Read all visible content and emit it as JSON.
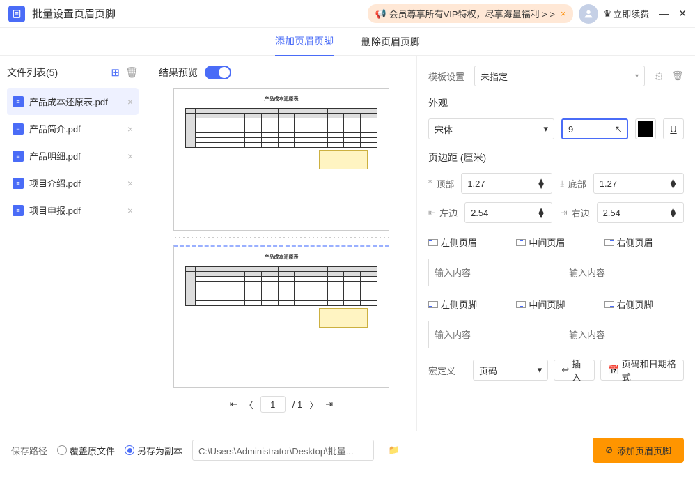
{
  "titlebar": {
    "title": "批量设置页眉页脚",
    "vip_text": "会员尊享所有VIP特权，尽享海量福利 > >",
    "vip_action": "立即续费"
  },
  "tabs": {
    "add": "添加页眉页脚",
    "remove": "删除页眉页脚"
  },
  "sidebar": {
    "title": "文件列表(5)",
    "files": [
      {
        "name": "产品成本还原表.pdf",
        "selected": true
      },
      {
        "name": "产品简介.pdf",
        "selected": false
      },
      {
        "name": "产品明细.pdf",
        "selected": false
      },
      {
        "name": "项目介绍.pdf",
        "selected": false
      },
      {
        "name": "项目申报.pdf",
        "selected": false
      }
    ]
  },
  "preview": {
    "title": "结果预览",
    "page_current": "1",
    "page_total": "/ 1",
    "doc_title": "产品成本还原表"
  },
  "settings": {
    "template_label": "模板设置",
    "template_value": "未指定",
    "appearance_label": "外观",
    "font_value": "宋体",
    "size_value": "9",
    "margin_label": "页边距 (厘米)",
    "margins": {
      "top_label": "顶部",
      "top_value": "1.27",
      "bottom_label": "底部",
      "bottom_value": "1.27",
      "left_label": "左边",
      "left_value": "2.54",
      "right_label": "右边",
      "right_value": "2.54"
    },
    "headers": {
      "left": "左侧页眉",
      "center": "中间页眉",
      "right": "右侧页眉"
    },
    "footers": {
      "left": "左侧页脚",
      "center": "中间页脚",
      "right": "右侧页脚"
    },
    "placeholder": "输入内容",
    "macro_label": "宏定义",
    "macro_value": "页码",
    "insert_label": "插入",
    "date_format_label": "页码和日期格式"
  },
  "footer": {
    "save_label": "保存路径",
    "overwrite": "覆盖原文件",
    "saveas": "另存为副本",
    "path": "C:\\Users\\Administrator\\Desktop\\批量...",
    "action": "添加页眉页脚"
  },
  "colors": {
    "primary": "#4a6cf7",
    "accent": "#ff9500"
  }
}
